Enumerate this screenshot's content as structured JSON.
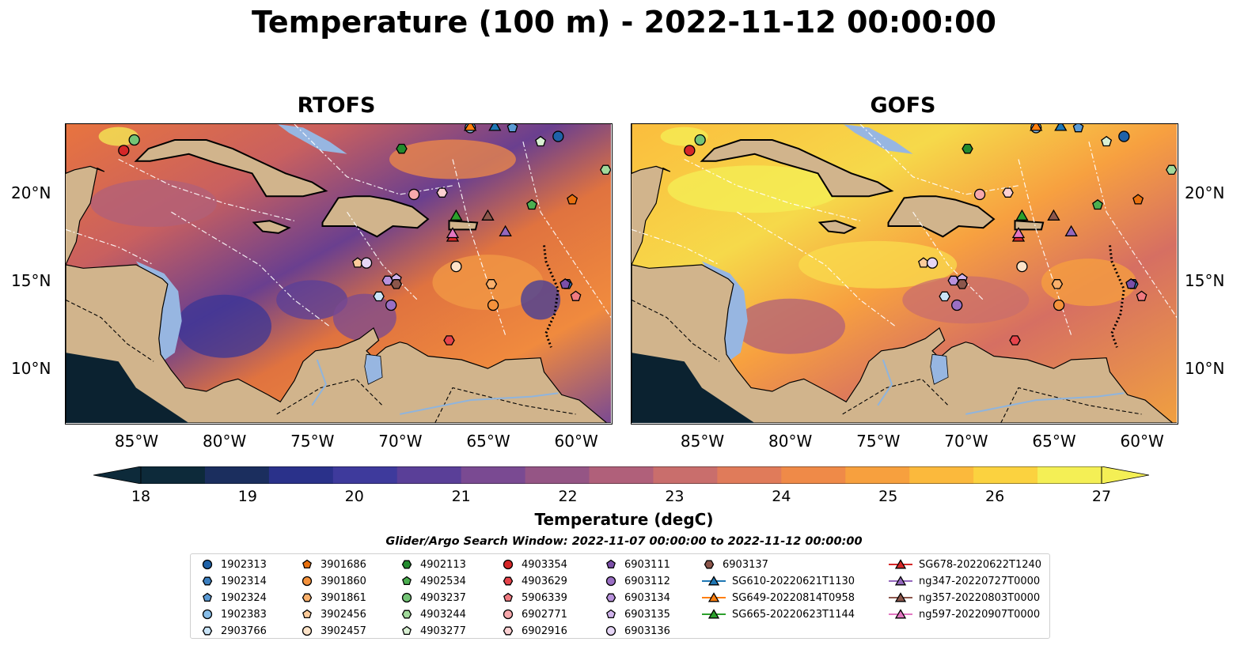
{
  "title": "Temperature (100 m) - 2022-11-12 00:00:00",
  "panels": [
    {
      "title": "RTOFS",
      "variant": "rtofs"
    },
    {
      "title": "GOFS",
      "variant": "gofs"
    }
  ],
  "lon_ticks": [
    "85°W",
    "80°W",
    "75°W",
    "70°W",
    "65°W",
    "60°W"
  ],
  "lon_tick_values": [
    -85,
    -80,
    -75,
    -70,
    -65,
    -60
  ],
  "lat_ticks": [
    "20°N",
    "15°N",
    "10°N"
  ],
  "lat_tick_values": [
    20,
    15,
    10
  ],
  "extent": {
    "lon_min": -89,
    "lon_max": -58,
    "lat_min": 7,
    "lat_max": 24
  },
  "colorbar": {
    "label": "Temperature (degC)",
    "min": 18,
    "max": 27,
    "ticks": [
      "18",
      "19",
      "20",
      "21",
      "22",
      "23",
      "24",
      "25",
      "26",
      "27"
    ],
    "colors": [
      "#0d2a3a",
      "#1b2e5e",
      "#2a318a",
      "#3e3a9c",
      "#5a3f98",
      "#7a4a92",
      "#955585",
      "#b0607a",
      "#c96e6c",
      "#e07b5a",
      "#ef8a48",
      "#f7a03e",
      "#fbb93c",
      "#fbd23f",
      "#f4ef55"
    ]
  },
  "search_window": "Glider/Argo Search Window: 2022-11-07 00:00:00 to 2022-11-12 00:00:00",
  "land_color": "#d1b48c",
  "water_color": "#97b6e1",
  "floats": [
    {
      "id": "1902313",
      "marker": "circle",
      "color": "#1f62a8",
      "lon": -61.0,
      "lat": 23.3
    },
    {
      "id": "1902314",
      "marker": "hexagon",
      "color": "#3c7fc0",
      "lon": -60.5,
      "lat": 14.9
    },
    {
      "id": "1902324",
      "marker": "pentagon",
      "color": "#5b9bd5",
      "lon": -63.6,
      "lat": 23.8
    },
    {
      "id": "1902383",
      "marker": "circle",
      "color": "#87bde8",
      "lon": -66.0,
      "lat": 23.8
    },
    {
      "id": "2903766",
      "marker": "hexagon",
      "color": "#c9e4f8",
      "lon": -71.2,
      "lat": 14.2
    },
    {
      "id": "3901686",
      "marker": "pentagon",
      "color": "#e8700e",
      "lon": -60.2,
      "lat": 19.7
    },
    {
      "id": "3901860",
      "marker": "circle",
      "color": "#f5923c",
      "lon": -64.7,
      "lat": 13.7
    },
    {
      "id": "3901861",
      "marker": "hexagon",
      "color": "#fbb06b",
      "lon": -64.8,
      "lat": 14.9
    },
    {
      "id": "3902456",
      "marker": "pentagon",
      "color": "#fccb9a",
      "lon": -72.4,
      "lat": 16.1
    },
    {
      "id": "3902457",
      "marker": "circle",
      "color": "#fde3c8",
      "lon": -66.8,
      "lat": 15.9
    },
    {
      "id": "4902113",
      "marker": "hexagon",
      "color": "#238b2e",
      "lon": -69.9,
      "lat": 22.6
    },
    {
      "id": "4902534",
      "marker": "pentagon",
      "color": "#4caf50",
      "lon": -62.5,
      "lat": 19.4
    },
    {
      "id": "4903237",
      "marker": "circle",
      "color": "#74c476",
      "lon": -85.1,
      "lat": 23.1
    },
    {
      "id": "4903244",
      "marker": "hexagon",
      "color": "#a1d99b",
      "lon": -58.3,
      "lat": 21.4
    },
    {
      "id": "4903277",
      "marker": "pentagon",
      "color": "#d9f0d3",
      "lon": -62.0,
      "lat": 23.0
    },
    {
      "id": "4903354",
      "marker": "circle",
      "color": "#d62728",
      "lon": -85.7,
      "lat": 22.5
    },
    {
      "id": "4903629",
      "marker": "hexagon",
      "color": "#e6444b",
      "lon": -67.2,
      "lat": 11.7
    },
    {
      "id": "5906339",
      "marker": "pentagon",
      "color": "#f07a80",
      "lon": -60.0,
      "lat": 14.2
    },
    {
      "id": "6902771",
      "marker": "circle",
      "color": "#f7a8ac",
      "lon": -69.2,
      "lat": 20.0
    },
    {
      "id": "6902916",
      "marker": "hexagon",
      "color": "#fcd0d2",
      "lon": -67.6,
      "lat": 20.1
    },
    {
      "id": "6903111",
      "marker": "pentagon",
      "color": "#7b4fa8",
      "lon": -60.6,
      "lat": 14.9
    },
    {
      "id": "6903112",
      "marker": "circle",
      "color": "#9a6fc4",
      "lon": -70.5,
      "lat": 13.7
    },
    {
      "id": "6903134",
      "marker": "hexagon",
      "color": "#b892dc",
      "lon": -70.7,
      "lat": 15.1
    },
    {
      "id": "6903135",
      "marker": "pentagon",
      "color": "#d1b4ec",
      "lon": -70.2,
      "lat": 15.2
    },
    {
      "id": "6903136",
      "marker": "circle",
      "color": "#e6d6f6",
      "lon": -71.9,
      "lat": 16.1
    },
    {
      "id": "6903137",
      "marker": "hexagon",
      "color": "#8c564b",
      "lon": -70.2,
      "lat": 14.9
    }
  ],
  "gliders": [
    {
      "id": "SG610-20220621T1130",
      "color": "#1f77b4",
      "lon": -64.6,
      "lat": 23.9
    },
    {
      "id": "SG649-20220814T0958",
      "color": "#ff7f0e",
      "lon": -66.0,
      "lat": 23.9
    },
    {
      "id": "SG665-20220623T1144",
      "color": "#2ca02c",
      "lon": -66.8,
      "lat": 18.8
    },
    {
      "id": "SG678-20220622T1240",
      "color": "#d62728",
      "lon": -67.0,
      "lat": 17.6
    },
    {
      "id": "ng347-20220727T0000",
      "color": "#9467bd",
      "lon": -64.0,
      "lat": 17.9
    },
    {
      "id": "ng357-20220803T0000",
      "color": "#8c564b",
      "lon": -65.0,
      "lat": 18.8
    },
    {
      "id": "ng597-20220907T0000",
      "color": "#e377c2",
      "lon": -67.0,
      "lat": 17.8
    }
  ]
}
